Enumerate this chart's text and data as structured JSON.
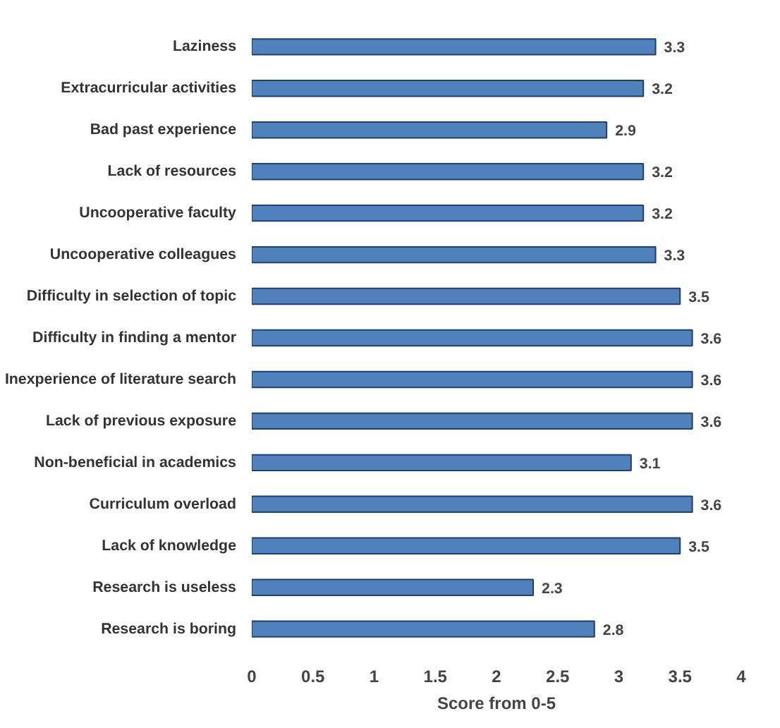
{
  "chart_data": {
    "type": "bar",
    "orientation": "horizontal",
    "xlabel": "Score from 0-5",
    "categories": [
      "Laziness",
      "Extracurricular activities",
      "Bad past experience",
      "Lack of resources",
      "Uncooperative faculty",
      "Uncooperative colleagues",
      "Difficulty in selection of topic",
      "Difficulty in finding a mentor",
      "Inexperience of literature search",
      "Lack of previous exposure",
      "Non-beneficial in academics",
      "Curriculum overload",
      "Lack of knowledge",
      "Research is useless",
      "Research is boring"
    ],
    "values": [
      3.3,
      3.2,
      2.9,
      3.2,
      3.2,
      3.3,
      3.5,
      3.6,
      3.6,
      3.6,
      3.1,
      3.6,
      3.5,
      2.3,
      2.8
    ],
    "color": "#4f81bd",
    "xlim": [
      0,
      4
    ],
    "xticks": [
      0,
      0.5,
      1,
      1.5,
      2,
      2.5,
      3,
      3.5,
      4
    ],
    "grid": false,
    "data_labels": true
  }
}
